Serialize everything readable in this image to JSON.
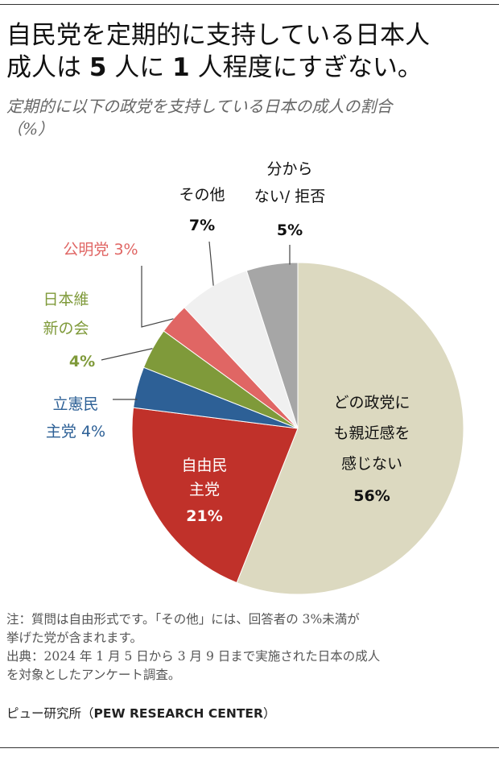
{
  "header": {
    "title_line1": "自民党を定期的に支持している日本人",
    "title_line2_parts": [
      "成人は ",
      "5",
      " 人に ",
      "1",
      " 人程度にすぎない。"
    ],
    "subtitle_line1": "定期的に以下の政党を支持している日本の成人の割合",
    "subtitle_line2": "（%）"
  },
  "chart_data": {
    "type": "pie",
    "title": "定期的に以下の政党を支持している日本の成人の割合",
    "unit": "%",
    "slices": [
      {
        "name": "どの政党にも親近感を感じない",
        "value": 56,
        "color": "#dcd9c0",
        "label_lines": [
          "どの政党に",
          "も親近感を",
          "感じない"
        ],
        "value_label": "56%",
        "text_color": "#111111"
      },
      {
        "name": "自由民主党",
        "value": 21,
        "color": "#c0312a",
        "label_lines": [
          "自由民",
          "主党"
        ],
        "value_label": "21%",
        "text_color": "#ffffff"
      },
      {
        "name": "立憲民主党",
        "value": 4,
        "color": "#2d6096",
        "label_lines": [
          "立憲民",
          "主党 4%"
        ],
        "value_label": "",
        "text_color": "#2d6096"
      },
      {
        "name": "日本維新の会",
        "value": 4,
        "color": "#7f9a3a",
        "label_lines": [
          "日本維",
          "新の会"
        ],
        "value_label": "4%",
        "text_color": "#7f9a3a"
      },
      {
        "name": "公明党",
        "value": 3,
        "color": "#e06664",
        "label_lines": [
          "公明党 3%"
        ],
        "value_label": "",
        "text_color": "#e06664"
      },
      {
        "name": "その他",
        "value": 7,
        "color": "#f0f0f0",
        "label_lines": [
          "その他"
        ],
        "value_label": "7%",
        "text_color": "#111111"
      },
      {
        "name": "分からない/ 拒否",
        "value": 5,
        "color": "#a6a6a6",
        "label_lines": [
          "分から",
          "ない/  拒否"
        ],
        "value_label": "5%",
        "text_color": "#111111"
      }
    ]
  },
  "footer": {
    "note_line1": "注：質問は自由形式です。「その他」には、回答者の 3%未満が",
    "note_line2": "挙げた党が含まれます。",
    "source_line1": "出典：2024 年 1 月 5 日から 3 月 9 日まで実施された日本の成人",
    "source_line2": "を対象としたアンケート調査。",
    "org_prefix": "ピュー研究所（",
    "org_name": "PEW RESEARCH CENTER",
    "org_suffix": "）"
  }
}
